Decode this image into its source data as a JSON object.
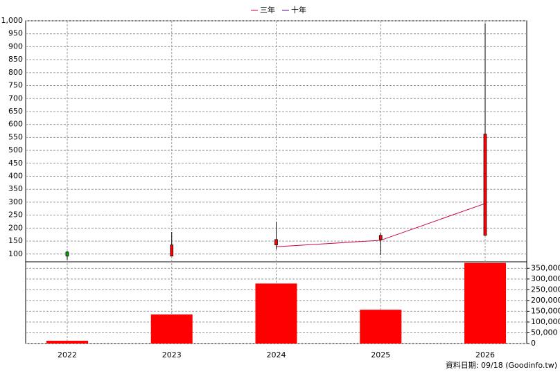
{
  "chart_data": {
    "type": "candlestick",
    "categories": [
      "2022",
      "2023",
      "2024",
      "2025",
      "2026"
    ],
    "open": [
      108,
      92,
      135,
      156,
      172
    ],
    "close": [
      92,
      135,
      156,
      172,
      563
    ],
    "high": [
      110,
      185,
      225,
      180,
      990
    ],
    "low": [
      78,
      92,
      118,
      97,
      172
    ],
    "up_color": "#ff0000",
    "down_color": "#00aa00",
    "series": [
      {
        "name": "三年",
        "color": "#cc0044",
        "values": [
          null,
          null,
          128,
          153,
          295
        ]
      },
      {
        "name": "十年",
        "color": "#660099",
        "values": [
          null,
          null,
          null,
          null,
          null
        ]
      }
    ],
    "volume": [
      13000,
      135000,
      279000,
      157000,
      375000
    ],
    "volume_color": "#ff0000",
    "ylim": [
      70,
      1000
    ],
    "yticks": [
      100,
      150,
      200,
      250,
      300,
      350,
      400,
      450,
      500,
      550,
      600,
      650,
      700,
      750,
      800,
      850,
      900,
      950,
      {
        "value": 1000,
        "label": "1,000"
      }
    ],
    "y2lim": [
      0,
      380000
    ],
    "y2ticks": [
      0,
      {
        "value": 50000,
        "label": "50,000"
      },
      {
        "value": 100000,
        "label": "100,000"
      },
      {
        "value": 150000,
        "label": "150,000"
      },
      {
        "value": 200000,
        "label": "200,000"
      },
      {
        "value": 250000,
        "label": "250,000"
      },
      {
        "value": 300000,
        "label": "300,000"
      },
      {
        "value": 350000,
        "label": "350,000"
      }
    ],
    "grid": true,
    "note": "資料日期: 09/18  (Goodinfo.tw)"
  }
}
